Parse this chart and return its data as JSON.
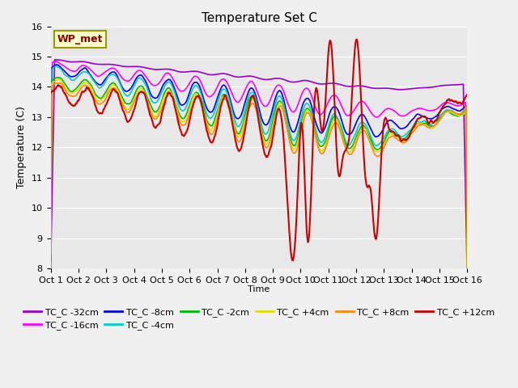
{
  "title": "Temperature Set C",
  "xlabel": "Time",
  "ylabel": "Temperature (C)",
  "ylim": [
    8.0,
    16.0
  ],
  "yticks": [
    8.0,
    9.0,
    10.0,
    11.0,
    12.0,
    13.0,
    14.0,
    15.0,
    16.0
  ],
  "x_labels": [
    "Oct 1",
    "Oct 2",
    "Oct 3",
    "Oct 4",
    "Oct 5",
    "Oct 6",
    "Oct 7",
    "Oct 8",
    "Oct 9",
    "Oct 10",
    "Oct 11",
    "Oct 12",
    "Oct 13",
    "Oct 14",
    "Oct 15",
    "Oct 16"
  ],
  "wp_met_label": "WP_met",
  "series_order": [
    "TC_C -32cm",
    "TC_C -16cm",
    "TC_C -8cm",
    "TC_C -4cm",
    "TC_C -2cm",
    "TC_C +4cm",
    "TC_C +8cm",
    "TC_C +12cm"
  ],
  "series": {
    "TC_C -32cm": {
      "color": "#9900CC",
      "lw": 1.2
    },
    "TC_C -16cm": {
      "color": "#FF00FF",
      "lw": 1.2
    },
    "TC_C -8cm": {
      "color": "#0000EE",
      "lw": 1.2
    },
    "TC_C -4cm": {
      "color": "#00CCCC",
      "lw": 1.2
    },
    "TC_C -2cm": {
      "color": "#00BB00",
      "lw": 1.2
    },
    "TC_C +4cm": {
      "color": "#DDDD00",
      "lw": 1.2
    },
    "TC_C +8cm": {
      "color": "#FF8800",
      "lw": 1.2
    },
    "TC_C +12cm": {
      "color": "#CC0000",
      "lw": 1.5
    }
  },
  "background_color": "#E8E8E8",
  "fig_bg": "#F0F0F0",
  "legend_bg": "#FFFFCC",
  "legend_edge": "#999900"
}
